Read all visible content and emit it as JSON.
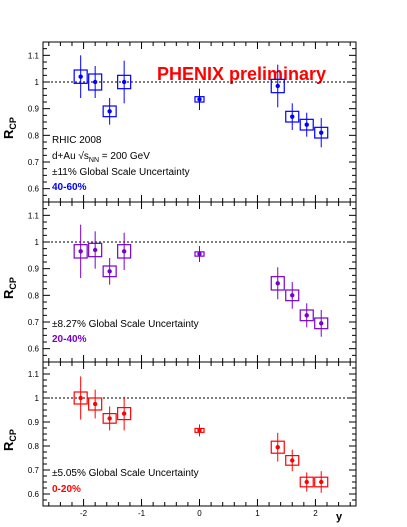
{
  "header": {
    "title": "PHENIX preliminary",
    "title_color": "#ff0000"
  },
  "panel_ylabel": {
    "main": "R",
    "sub": "CP"
  },
  "x_axis_label": "y",
  "x_ticks": [
    "-2",
    "-1",
    "0",
    "1",
    "2"
  ],
  "y_ticks": [
    "0.6",
    "0.7",
    "0.8",
    "0.9",
    "1",
    "1.1"
  ],
  "chart_data": [
    {
      "type": "scatter",
      "centrality": "40-60%",
      "color": "#0000ff",
      "xlim": [
        -2.7,
        2.7
      ],
      "ylim": [
        0.55,
        1.15
      ],
      "reference_line": 1.0,
      "annotations": [
        "RHIC 2008",
        "d+Au √s",
        "NN",
        " = 200 GeV",
        "±11% Global Scale Uncertainty",
        "40-60%"
      ],
      "x": [
        -2.05,
        -1.8,
        -1.55,
        -1.3,
        0,
        1.35,
        1.6,
        1.85,
        2.1
      ],
      "y": [
        1.02,
        1.0,
        0.89,
        1.0,
        0.935,
        0.985,
        0.87,
        0.84,
        0.81
      ],
      "stat_err": [
        0.08,
        0.06,
        0.05,
        0.08,
        0.04,
        0.08,
        0.05,
        0.045,
        0.055
      ],
      "sys_err": [
        0.025,
        0.03,
        0.02,
        0.025,
        0.01,
        0.025,
        0.02,
        0.02,
        0.02
      ]
    },
    {
      "type": "scatter",
      "centrality": "20-40%",
      "color": "#7a00cc",
      "xlim": [
        -2.7,
        2.7
      ],
      "ylim": [
        0.55,
        1.15
      ],
      "reference_line": 1.0,
      "annotations": [
        "±8.27% Global Scale Uncertainty",
        "20-40%"
      ],
      "x": [
        -2.05,
        -1.8,
        -1.55,
        -1.3,
        0,
        1.35,
        1.6,
        1.85,
        2.1
      ],
      "y": [
        0.965,
        0.97,
        0.89,
        0.965,
        0.955,
        0.845,
        0.8,
        0.725,
        0.695
      ],
      "stat_err": [
        0.1,
        0.07,
        0.05,
        0.07,
        0.03,
        0.06,
        0.05,
        0.045,
        0.05
      ],
      "sys_err": [
        0.025,
        0.025,
        0.02,
        0.025,
        0.008,
        0.025,
        0.02,
        0.02,
        0.02
      ]
    },
    {
      "type": "scatter",
      "centrality": "0-20%",
      "color": "#ff0000",
      "xlim": [
        -2.7,
        2.7
      ],
      "ylim": [
        0.55,
        1.15
      ],
      "reference_line": 1.0,
      "annotations": [
        "±5.05% Global Scale Uncertainty",
        "0-20%"
      ],
      "x": [
        -2.05,
        -1.8,
        -1.55,
        -1.3,
        0,
        1.35,
        1.6,
        1.85,
        2.1
      ],
      "y": [
        1.0,
        0.975,
        0.915,
        0.935,
        0.865,
        0.795,
        0.74,
        0.65,
        0.65
      ],
      "stat_err": [
        0.09,
        0.06,
        0.05,
        0.07,
        0.025,
        0.06,
        0.045,
        0.04,
        0.045
      ],
      "sys_err": [
        0.025,
        0.025,
        0.02,
        0.025,
        0.008,
        0.025,
        0.02,
        0.02,
        0.02
      ]
    }
  ]
}
